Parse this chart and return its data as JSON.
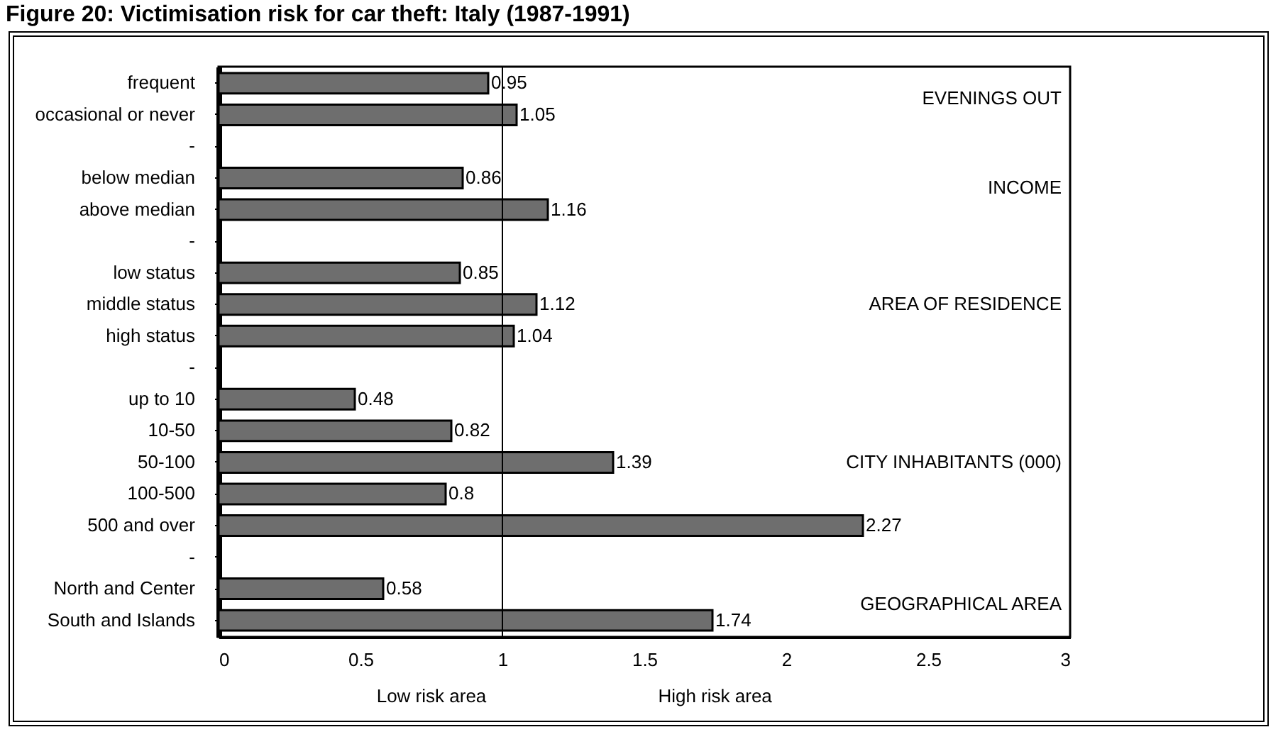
{
  "chart_data": {
    "type": "bar",
    "orientation": "horizontal",
    "title": "Figure 20: Victimisation risk for car theft: Italy (1987-1991)",
    "categories": [
      "frequent",
      "occasional or never",
      "-",
      "below median",
      "above median",
      "-",
      "low status",
      "middle status",
      "high status",
      "-",
      "up to 10",
      "10-50",
      "50-100",
      "100-500",
      "500 and over",
      "-",
      "North and Center",
      "South and Islands"
    ],
    "values": [
      0.95,
      1.05,
      null,
      0.86,
      1.16,
      null,
      0.85,
      1.12,
      1.04,
      null,
      0.48,
      0.82,
      1.39,
      0.8,
      2.27,
      null,
      0.58,
      1.74
    ],
    "color": "#6e6e6e",
    "data_labels": true,
    "xlim": [
      0,
      3
    ],
    "xticks": [
      0,
      0.5,
      1,
      1.5,
      2,
      2.5,
      3
    ],
    "grid": false,
    "ref_lines": [
      {
        "axis": "x",
        "value": 1,
        "color": "#000000"
      }
    ],
    "annotations": [
      "EVENINGS OUT",
      "INCOME",
      "AREA OF RESIDENCE",
      "CITY INHABITANTS (000)",
      "GEOGRAPHICAL AREA",
      "Low risk area",
      "High risk area"
    ]
  }
}
